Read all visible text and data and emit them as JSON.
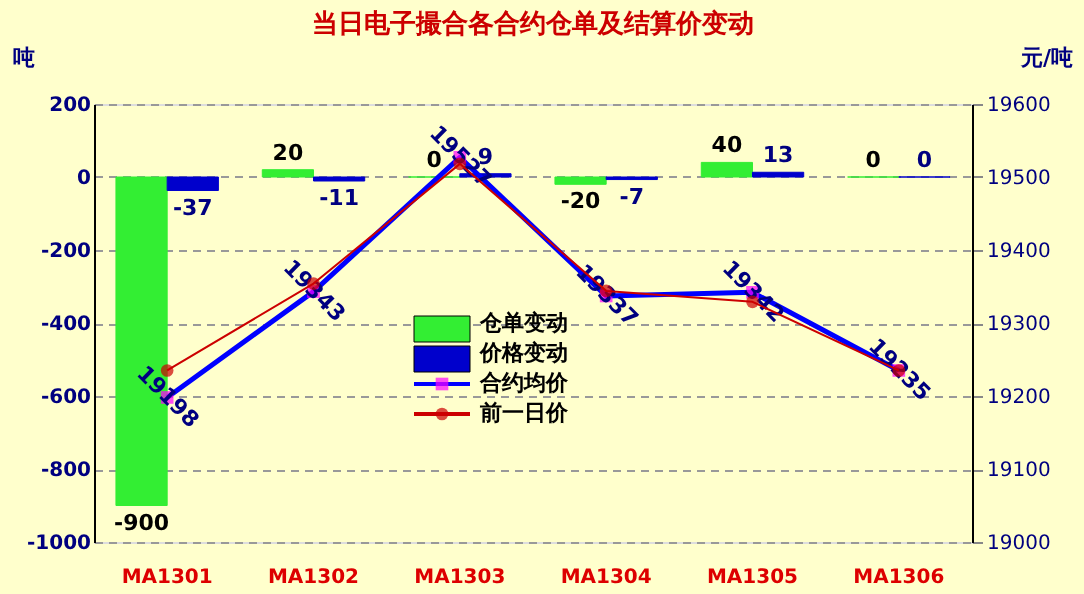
{
  "chart_data": {
    "type": "bar",
    "title": "当日电子撮合各合约仓单及结算价变动",
    "ylabel": "吨",
    "y2label": "元/吨",
    "categories": [
      "MA1301",
      "MA1302",
      "MA1303",
      "MA1304",
      "MA1305",
      "MA1306"
    ],
    "series": [
      {
        "name": "仓单变动",
        "color": "#33ee33",
        "values": [
          -900,
          20,
          0,
          -20,
          40,
          0
        ],
        "value_labels": [
          "-900",
          "20",
          "0",
          "-20",
          "40",
          "0"
        ]
      },
      {
        "name": "价格变动",
        "color": "#0000cc",
        "values": [
          -37,
          -11,
          9,
          -7,
          13,
          0
        ],
        "value_labels": [
          "-37",
          "-11",
          "9",
          "-7",
          "13",
          "0"
        ]
      },
      {
        "name": "合约均价",
        "type": "line",
        "axis": "y2",
        "color": "#0000ff",
        "marker": "square",
        "values": [
          19198,
          19343,
          19527,
          19337,
          19342,
          19235
        ],
        "value_labels": [
          "19198",
          "19343",
          "19527",
          "19337",
          "19342",
          "19235"
        ]
      },
      {
        "name": "前一日价",
        "type": "line",
        "axis": "y2",
        "color": "#cc0000",
        "marker": "circle",
        "values": [
          19235,
          19354,
          19518,
          19344,
          19329,
          19235
        ]
      }
    ],
    "ylim": [
      -1000,
      200
    ],
    "yticks": [
      -1000,
      -800,
      -600,
      -400,
      -200,
      0,
      200
    ],
    "y2lim": [
      19000,
      19600
    ],
    "y2ticks": [
      19000,
      19100,
      19200,
      19300,
      19400,
      19500,
      19600
    ],
    "grid": "y",
    "legend": "center"
  }
}
